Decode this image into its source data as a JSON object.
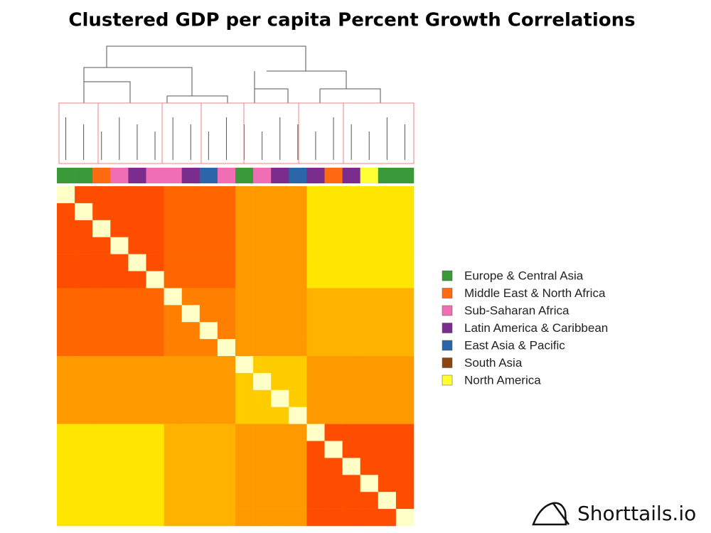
{
  "chart_data": {
    "type": "heatmap",
    "title": "Clustered GDP per capita Percent Growth Correlations",
    "colorscale": [
      "#ff0000",
      "#ffff00",
      "#ffffc8"
    ],
    "zlim": [
      0,
      1
    ],
    "matrix": [
      [
        1,
        0.15,
        0.15,
        0.15,
        0.15,
        0.15,
        0.2,
        0.2,
        0.2,
        0.2,
        0.3,
        0.3,
        0.3,
        0.3,
        0.45,
        0.45,
        0.45,
        0.45,
        0.45,
        0.45
      ],
      [
        0.15,
        1,
        0.15,
        0.15,
        0.15,
        0.15,
        0.2,
        0.2,
        0.2,
        0.2,
        0.3,
        0.3,
        0.3,
        0.3,
        0.45,
        0.45,
        0.45,
        0.45,
        0.45,
        0.45
      ],
      [
        0.15,
        0.15,
        1,
        0.15,
        0.15,
        0.15,
        0.2,
        0.2,
        0.2,
        0.2,
        0.3,
        0.3,
        0.3,
        0.3,
        0.45,
        0.45,
        0.45,
        0.45,
        0.45,
        0.45
      ],
      [
        0.15,
        0.15,
        0.15,
        1,
        0.15,
        0.15,
        0.2,
        0.2,
        0.2,
        0.2,
        0.3,
        0.3,
        0.3,
        0.3,
        0.45,
        0.45,
        0.45,
        0.45,
        0.45,
        0.45
      ],
      [
        0.15,
        0.15,
        0.15,
        0.15,
        1,
        0.15,
        0.2,
        0.2,
        0.2,
        0.2,
        0.3,
        0.3,
        0.3,
        0.3,
        0.45,
        0.45,
        0.45,
        0.45,
        0.45,
        0.45
      ],
      [
        0.15,
        0.15,
        0.15,
        0.15,
        0.15,
        1,
        0.2,
        0.2,
        0.2,
        0.2,
        0.3,
        0.3,
        0.3,
        0.3,
        0.45,
        0.45,
        0.45,
        0.45,
        0.45,
        0.45
      ],
      [
        0.2,
        0.2,
        0.2,
        0.2,
        0.2,
        0.2,
        1,
        0.25,
        0.25,
        0.25,
        0.3,
        0.3,
        0.3,
        0.3,
        0.35,
        0.35,
        0.35,
        0.35,
        0.35,
        0.35
      ],
      [
        0.2,
        0.2,
        0.2,
        0.2,
        0.2,
        0.2,
        0.25,
        1,
        0.25,
        0.25,
        0.3,
        0.3,
        0.3,
        0.3,
        0.35,
        0.35,
        0.35,
        0.35,
        0.35,
        0.35
      ],
      [
        0.2,
        0.2,
        0.2,
        0.2,
        0.2,
        0.2,
        0.25,
        0.25,
        1,
        0.25,
        0.3,
        0.3,
        0.3,
        0.3,
        0.35,
        0.35,
        0.35,
        0.35,
        0.35,
        0.35
      ],
      [
        0.2,
        0.2,
        0.2,
        0.2,
        0.2,
        0.2,
        0.25,
        0.25,
        0.25,
        1,
        0.3,
        0.3,
        0.3,
        0.3,
        0.35,
        0.35,
        0.35,
        0.35,
        0.35,
        0.35
      ],
      [
        0.3,
        0.3,
        0.3,
        0.3,
        0.3,
        0.3,
        0.3,
        0.3,
        0.3,
        0.3,
        1,
        0.4,
        0.4,
        0.4,
        0.3,
        0.3,
        0.3,
        0.3,
        0.3,
        0.3
      ],
      [
        0.3,
        0.3,
        0.3,
        0.3,
        0.3,
        0.3,
        0.3,
        0.3,
        0.3,
        0.3,
        0.4,
        1,
        0.4,
        0.4,
        0.3,
        0.3,
        0.3,
        0.3,
        0.3,
        0.3
      ],
      [
        0.3,
        0.3,
        0.3,
        0.3,
        0.3,
        0.3,
        0.3,
        0.3,
        0.3,
        0.3,
        0.4,
        0.4,
        1,
        0.4,
        0.3,
        0.3,
        0.3,
        0.3,
        0.3,
        0.3
      ],
      [
        0.3,
        0.3,
        0.3,
        0.3,
        0.3,
        0.3,
        0.3,
        0.3,
        0.3,
        0.3,
        0.4,
        0.4,
        0.4,
        1,
        0.3,
        0.3,
        0.3,
        0.3,
        0.3,
        0.3
      ],
      [
        0.45,
        0.45,
        0.45,
        0.45,
        0.45,
        0.45,
        0.35,
        0.35,
        0.35,
        0.35,
        0.3,
        0.3,
        0.3,
        0.3,
        1,
        0.15,
        0.15,
        0.15,
        0.15,
        0.15
      ],
      [
        0.45,
        0.45,
        0.45,
        0.45,
        0.45,
        0.45,
        0.35,
        0.35,
        0.35,
        0.35,
        0.3,
        0.3,
        0.3,
        0.3,
        0.15,
        1,
        0.15,
        0.15,
        0.15,
        0.15
      ],
      [
        0.45,
        0.45,
        0.45,
        0.45,
        0.45,
        0.45,
        0.35,
        0.35,
        0.35,
        0.35,
        0.3,
        0.3,
        0.3,
        0.3,
        0.15,
        0.15,
        1,
        0.15,
        0.15,
        0.15
      ],
      [
        0.45,
        0.45,
        0.45,
        0.45,
        0.45,
        0.45,
        0.35,
        0.35,
        0.35,
        0.35,
        0.3,
        0.3,
        0.3,
        0.3,
        0.15,
        0.15,
        0.15,
        1,
        0.15,
        0.15
      ],
      [
        0.45,
        0.45,
        0.45,
        0.45,
        0.45,
        0.45,
        0.35,
        0.35,
        0.35,
        0.35,
        0.3,
        0.3,
        0.3,
        0.3,
        0.15,
        0.15,
        0.15,
        0.15,
        1,
        0.15
      ],
      [
        0.45,
        0.45,
        0.45,
        0.45,
        0.45,
        0.45,
        0.35,
        0.35,
        0.35,
        0.35,
        0.3,
        0.3,
        0.3,
        0.3,
        0.15,
        0.15,
        0.15,
        0.15,
        0.15,
        1
      ]
    ],
    "column_groups": [
      "Europe & Central Asia",
      "Europe & Central Asia",
      "Middle East & North Africa",
      "Sub-Saharan Africa",
      "Latin America & Caribbean",
      "Sub-Saharan Africa",
      "Sub-Saharan Africa",
      "Latin America & Caribbean",
      "East Asia & Pacific",
      "Sub-Saharan Africa",
      "Europe & Central Asia",
      "Sub-Saharan Africa",
      "Latin America & Caribbean",
      "East Asia & Pacific",
      "Latin America & Caribbean",
      "Middle East & North Africa",
      "Latin America & Caribbean",
      "North America",
      "Europe & Central Asia",
      "Europe & Central Asia"
    ],
    "groups": [
      {
        "name": "Europe & Central Asia",
        "color": "#3a9a3a"
      },
      {
        "name": "Middle East & North Africa",
        "color": "#ff6a13"
      },
      {
        "name": "Sub-Saharan Africa",
        "color": "#f06eb4"
      },
      {
        "name": "Latin America & Caribbean",
        "color": "#7b2d8e"
      },
      {
        "name": "East Asia & Pacific",
        "color": "#2a66a8"
      },
      {
        "name": "South Asia",
        "color": "#8b4513"
      },
      {
        "name": "North America",
        "color": "#ffff33"
      }
    ],
    "legend": "right"
  },
  "brand": "Shorttails.io"
}
